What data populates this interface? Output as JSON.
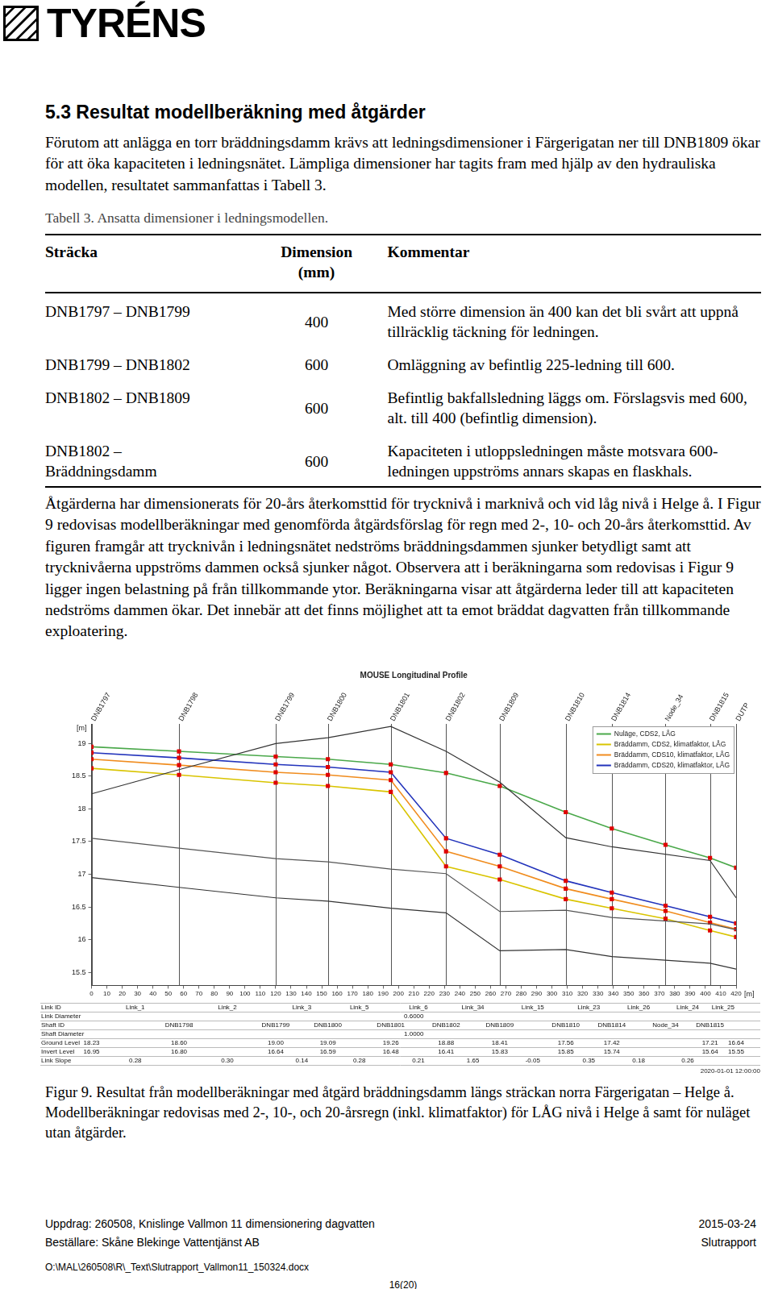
{
  "page": {
    "logo": "TYRÉNS",
    "heading": "5.3 Resultat modellberäkning med åtgärder",
    "paragraph1": "Förutom att anlägga en torr bräddningsdamm krävs att ledningsdimensioner i Färgerigatan ner till DNB1809 ökar för att öka kapaciteten i ledningsnätet. Lämpliga dimensioner har tagits fram med hjälp av den hydrauliska modellen, resultatet sammanfattas i Tabell 3.",
    "table_caption": "Tabell 3. Ansatta dimensioner i ledningsmodellen.",
    "table": {
      "header": [
        "Sträcka",
        "Dimension (mm)",
        "Kommentar"
      ],
      "rows": [
        [
          "DNB1797 – DNB1799",
          "400",
          "Med större dimension än 400 kan det bli svårt att uppnå tillräcklig täckning för ledningen."
        ],
        [
          "DNB1799 – DNB1802",
          "600",
          "Omläggning av befintlig 225-ledning till 600."
        ],
        [
          "DNB1802 – DNB1809",
          "600",
          "Befintlig bakfallsledning läggs om. Förslagsvis med 600, alt. till 400 (befintlig dimension)."
        ],
        [
          "DNB1802 – Bräddningsdamm",
          "600",
          "Kapaciteten i utloppsledningen måste motsvara 600-ledningen uppströms annars skapas en flaskhals."
        ]
      ]
    },
    "paragraph2": "Åtgärderna har dimensionerats för 20-års återkomsttid för trycknivå i marknivå och vid låg nivå i Helge å. I Figur 9 redovisas modellberäkningar med genomförda åtgärdsförslag för regn med 2-, 10- och 20-års återkomsttid. Av figuren framgår att trycknivån i ledningsnätet nedströms bräddningsdammen sjunker betydligt samt att trycknivåerna uppströms dammen också sjunker något. Observera att i beräkningarna som redovisas i Figur 9 ligger ingen belastning på från tillkommande ytor. Beräkningarna visar att åtgärderna leder till att kapaciteten nedströms dammen ökar. Det innebär att det finns möjlighet att ta emot bräddat dagvatten från tillkommande exploatering.",
    "figure_caption": "Figur 9. Resultat från modellberäkningar med åtgärd bräddningsdamm längs sträckan norra Färgerigatan – Helge å. Modellberäkningar redovisas med 2-, 10-, och 20-årsregn (inkl. klimatfaktor) för LÅG nivå i Helge å samt för nuläget utan åtgärder.",
    "footer": {
      "line1_left": "Uppdrag: 260508, Knislinge Vallmon 11 dimensionering dagvatten",
      "line1_right": "2015-03-24",
      "line2_left": "Beställare: Skåne Blekinge Vattentjänst AB",
      "line2_right": "Slutrapport",
      "path": "O:\\MAL\\260508\\R\\_Text\\Slutrapport_Vallmon11_150324.docx",
      "page_number": "16(20)"
    }
  },
  "chart_data": {
    "type": "line",
    "title": "MOUSE Longitudinal Profile",
    "x_label": "[m]",
    "y_label": "[m]",
    "node_labels": [
      "DNB1797",
      "DNB1798",
      "DNB1799",
      "DNB1800",
      "DNB1801",
      "DNB1802",
      "DNB1809",
      "DNB1810",
      "DNB1814",
      "Node_34",
      "DNB1815",
      "DUTP"
    ],
    "x": [
      0,
      57,
      120,
      154,
      195,
      231,
      266,
      309,
      339,
      374,
      403,
      420
    ],
    "series": [
      {
        "name": "Nuläge, CDS2, LÅG",
        "color": "#4aa84a",
        "marker": "square",
        "line_style": "solid",
        "values": [
          18.95,
          18.88,
          18.8,
          18.76,
          18.68,
          18.55,
          18.35,
          17.95,
          17.7,
          17.45,
          17.25,
          17.1
        ]
      },
      {
        "name": "Bräddamm, CDS2, klimatfaktor, LÅG",
        "color": "#d9c400",
        "marker": "square",
        "line_style": "solid",
        "values": [
          18.62,
          18.52,
          18.4,
          18.35,
          18.26,
          17.12,
          16.92,
          16.62,
          16.48,
          16.32,
          16.14,
          16.04
        ]
      },
      {
        "name": "Bräddamm, CDS10, klimatfaktor, LÅG",
        "color": "#f08c1e",
        "marker": "square",
        "line_style": "solid",
        "values": [
          18.76,
          18.67,
          18.56,
          18.52,
          18.44,
          17.35,
          17.12,
          16.78,
          16.62,
          16.44,
          16.26,
          16.16
        ]
      },
      {
        "name": "Bräddamm, CDS20, klimatfaktor, LÅG",
        "color": "#2233bb",
        "marker": "square",
        "line_style": "solid",
        "values": [
          18.86,
          18.78,
          18.68,
          18.64,
          18.56,
          17.55,
          17.3,
          16.9,
          16.72,
          16.52,
          16.35,
          16.25
        ]
      }
    ],
    "profile": {
      "ground_level": {
        "color": "#333333",
        "values": [
          18.23,
          18.6,
          19.0,
          19.09,
          19.26,
          18.88,
          18.41,
          17.56,
          17.42,
          null,
          17.21,
          16.64
        ]
      },
      "pipe_top": {
        "color": "#555555",
        "values": [
          17.55,
          17.4,
          17.24,
          17.19,
          17.08,
          17.01,
          16.43,
          16.45,
          16.34,
          null,
          16.24,
          16.15
        ]
      },
      "invert_level": {
        "color": "#333333",
        "values": [
          16.95,
          16.8,
          16.64,
          16.59,
          16.48,
          16.41,
          15.83,
          15.85,
          15.74,
          null,
          15.64,
          15.55
        ]
      }
    },
    "profile_table": {
      "row_labels": [
        "Link ID",
        "Link Diameter",
        "Shaft ID",
        "Shaft Diameter",
        "Ground Level",
        "Invert Level",
        "Link Slope"
      ],
      "link_ids": [
        "Link_1",
        "Link_2",
        "Link_3",
        "Link_5",
        "Link_6",
        "Link_34",
        "Link_15",
        "Link_23",
        "Link_26",
        "Link_24",
        "Link_25"
      ],
      "link_diameter": "0.6000",
      "shaft_ids": [
        null,
        "DNB1798",
        "DNB1799",
        "DNB1800",
        "DNB1801",
        "DNB1802",
        "DNB1809",
        "DNB1810",
        "DNB1814",
        "Node_34",
        "DNB1815",
        null
      ],
      "shaft_diameter": "1.0000",
      "link_slopes": [
        0.28,
        0.3,
        0.14,
        0.28,
        0.21,
        1.65,
        -0.05,
        0.35,
        0.18,
        0.26,
        null
      ]
    },
    "timestamp": "2020-01-01 12:00:00",
    "xlim": [
      0,
      420
    ],
    "xticks": [
      0,
      10,
      20,
      30,
      40,
      50,
      60,
      70,
      80,
      90,
      100,
      110,
      120,
      130,
      140,
      150,
      160,
      170,
      180,
      190,
      200,
      210,
      220,
      230,
      240,
      250,
      260,
      270,
      280,
      290,
      300,
      310,
      320,
      330,
      340,
      350,
      360,
      370,
      380,
      390,
      400,
      410,
      420
    ],
    "ylim": [
      15.3,
      19.3
    ],
    "yticks": [
      15.5,
      16.0,
      16.5,
      17.0,
      17.5,
      18.0,
      18.5,
      19.0
    ],
    "grid": false,
    "legend": "upper right"
  }
}
